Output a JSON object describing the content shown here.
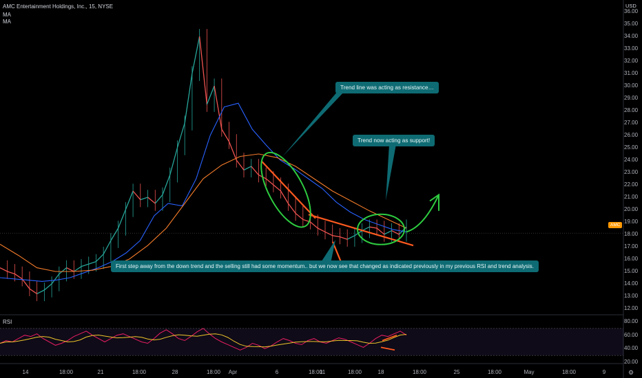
{
  "header": {
    "symbol_title": "AMC Entertainment Holdings, Inc., 15, NYSE",
    "indicators": [
      "MA",
      "MA"
    ],
    "currency": "USD"
  },
  "price_axis": {
    "labels": [
      "36.00",
      "35.00",
      "34.00",
      "33.00",
      "32.00",
      "31.00",
      "30.00",
      "29.00",
      "28.00",
      "27.00",
      "26.00",
      "25.00",
      "24.00",
      "23.00",
      "22.00",
      "21.00",
      "20.00",
      "19.00",
      "18.00",
      "17.00",
      "16.00",
      "15.00",
      "14.00",
      "13.00",
      "12.00"
    ],
    "current_price_tag": "AMC"
  },
  "rsi_axis": {
    "labels": [
      "80.00",
      "60.00",
      "40.00",
      "20.00"
    ]
  },
  "time_axis": {
    "labels": [
      "14",
      "18:00",
      "21",
      "18:00",
      "28",
      "18:00",
      "Apr",
      "6",
      "18:00",
      "11",
      "18:00",
      "18",
      "18:00",
      "25",
      "18:00",
      "May",
      "18:00",
      "9"
    ]
  },
  "rsi_pane": {
    "label": "RSI"
  },
  "annotations": {
    "resistance": "Trend line was acting as resistance…",
    "support": "Trend now acting as support!",
    "bottom": "First step away from the down trend and the selling still had some momentum.. but we now see that changed as indicated previously in my previous RSI and trend analysis."
  },
  "colors": {
    "background": "#000000",
    "ma_fast": "#2962ff",
    "ma_slow": "#f57c2a",
    "trendline": "#ff5a1f",
    "circle": "#2ecc40",
    "callout_bg": "#0e6b73",
    "rsi_line": "#e91e63",
    "rsi_ma": "#f0c52a",
    "price_tag": "#ff9800"
  },
  "chart_data": {
    "type": "line",
    "title": "AMC Entertainment Holdings, Inc., 15, NYSE",
    "xlabel": "",
    "ylabel": "",
    "ylim": [
      12,
      36
    ],
    "x_ticks": [
      "14",
      "18:00",
      "21",
      "18:00",
      "28",
      "18:00",
      "Apr",
      "6",
      "18:00",
      "11",
      "18:00",
      "18",
      "18:00",
      "25",
      "18:00",
      "May",
      "18:00",
      "9"
    ],
    "current_price": 18.1,
    "series": [
      {
        "values": [
          15.3,
          15.0,
          14.8,
          14.4,
          13.6,
          13.2,
          13.5,
          14.0,
          14.8,
          15.3,
          15.0,
          15.4,
          15.6,
          15.8,
          16.4,
          17.5,
          18.5,
          20.0,
          21.5,
          20.8,
          21.0,
          20.5,
          21.2,
          22.8,
          25.0,
          27.0,
          31.0,
          34.0,
          28.5,
          30.0,
          26.5,
          25.5,
          24.0,
          23.2,
          23.5,
          22.8,
          22.5,
          22.0,
          21.5,
          20.5,
          19.7,
          19.2,
          19.0,
          18.5,
          18.2,
          17.9,
          17.8,
          17.6,
          17.9,
          18.3,
          18.6,
          18.5,
          18.0,
          18.3,
          18.0,
          18.6
        ]
      },
      {
        "values": [
          14.5,
          14.4,
          14.3,
          14.2,
          14.3,
          14.5,
          14.9,
          15.3,
          15.8,
          16.5,
          17.5,
          19.5,
          20.5,
          20.3,
          22.5,
          26.0,
          28.3,
          28.6,
          26.5,
          25.2,
          24.0,
          23.3,
          22.5,
          21.7,
          20.6,
          19.8,
          19.2,
          18.8,
          18.4,
          18.2
        ]
      },
      {
        "values": [
          17.2,
          16.3,
          15.3,
          15.0,
          15.0,
          15.1,
          15.4,
          16.0,
          17.1,
          18.5,
          20.5,
          22.5,
          23.6,
          24.3,
          24.5,
          24.2,
          23.5,
          22.5,
          21.5,
          20.7,
          19.9,
          19.2,
          18.5
        ]
      }
    ],
    "rsi": {
      "ylim": [
        20,
        80
      ],
      "bands": [
        30,
        70
      ],
      "values": [
        48,
        52,
        50,
        55,
        60,
        58,
        62,
        55,
        50,
        45,
        48,
        52,
        58,
        62,
        66,
        60,
        55,
        50,
        55,
        60,
        62,
        58,
        54,
        50,
        48,
        55,
        63,
        68,
        62,
        55,
        52,
        58,
        65,
        70,
        62,
        55,
        50,
        46,
        42,
        38,
        42,
        48,
        45,
        40,
        44,
        50,
        55,
        52,
        48,
        46,
        52,
        55,
        50,
        48,
        52,
        56,
        54,
        50,
        46,
        42,
        48,
        55,
        60,
        58,
        62,
        66,
        60
      ]
    },
    "annotations": [
      "Trend line was acting as resistance…",
      "Trend now acting as support!",
      "First step away from the down trend and the selling still had some momentum.. but we now see that changed as indicated previously in my previous RSI and trend analysis."
    ]
  }
}
